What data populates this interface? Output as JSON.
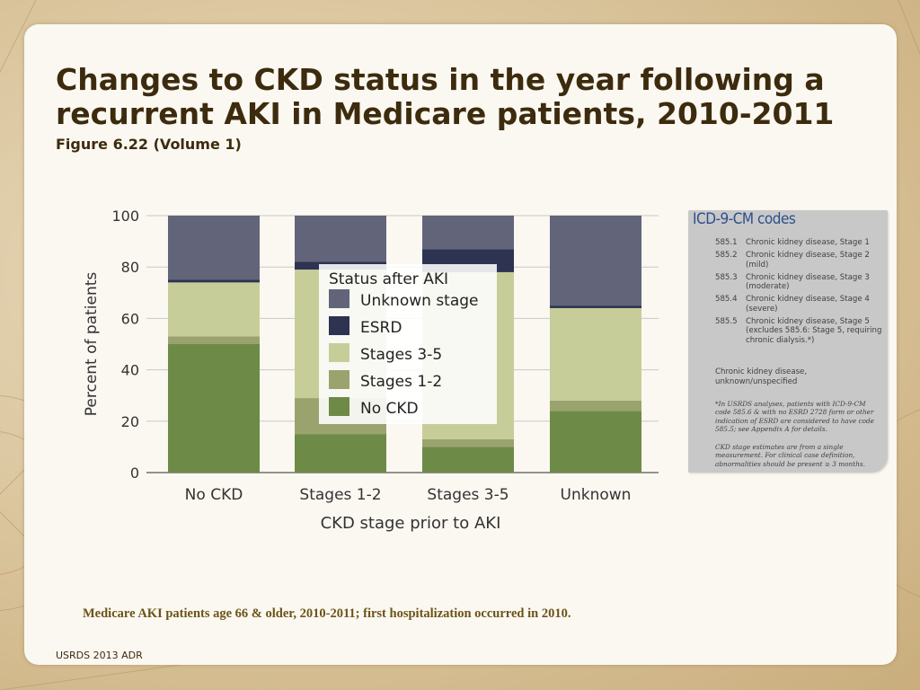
{
  "header": {
    "title": "Changes to CKD status in the year following a recurrent AKI in Medicare patients, 2010-2011",
    "subtitle": "Figure 6.22 (Volume 1)"
  },
  "chart_data": {
    "type": "bar",
    "stacked": true,
    "categories": [
      "No CKD",
      "Stages 1-2",
      "Stages 3-5",
      "Unknown"
    ],
    "series": [
      {
        "name": "No CKD",
        "color": "#6e8a47",
        "values": [
          50,
          15,
          10,
          24
        ]
      },
      {
        "name": "Stages 1-2",
        "color": "#9aa36d",
        "values": [
          3,
          14,
          3,
          4
        ]
      },
      {
        "name": "Stages 3-5",
        "color": "#c7cd98",
        "values": [
          21,
          50,
          65,
          36
        ]
      },
      {
        "name": "ESRD",
        "color": "#2d3351",
        "values": [
          1,
          3,
          9,
          1
        ]
      },
      {
        "name": "Unknown stage",
        "color": "#62657a",
        "values": [
          25,
          18,
          13,
          35
        ]
      }
    ],
    "yticks": [
      0,
      20,
      40,
      60,
      80,
      100
    ],
    "ylim": [
      0,
      100
    ],
    "ylabel": "Percent of patients",
    "xlabel": "CKD stage prior to AKI",
    "legend_title": "Status after AKI",
    "legend_order": [
      "Unknown stage",
      "ESRD",
      "Stages 3-5",
      "Stages 1-2",
      "No CKD"
    ]
  },
  "icd_box": {
    "title": "ICD-9-CM codes",
    "rows": [
      {
        "code": "585.1",
        "desc": "Chronic kidney disease, Stage 1"
      },
      {
        "code": "585.2",
        "desc": "Chronic kidney disease, Stage 2 (mild)"
      },
      {
        "code": "585.3",
        "desc": "Chronic kidney disease, Stage 3 (moderate)"
      },
      {
        "code": "585.4",
        "desc": "Chronic kidney disease, Stage 4 (severe)"
      },
      {
        "code": "585.5",
        "desc": "Chronic kidney disease, Stage 5 (excludes 585.6: Stage 5, requiring chronic dialysis.*)"
      }
    ],
    "unknown": "Chronic kidney disease, unknown/unspecified",
    "footnote1": "*In USRDS analyses, patients with ICD-9-CM code 585.6 & with no ESRD 2728 form or other indication of ESRD are considered to have code 585.5; see Appendix A for details.",
    "footnote2": "CKD stage estimates are from a single measurement. For clinical case definition, abnormalities should be present ≥ 3 months."
  },
  "footer": {
    "note": "Medicare AKI patients age 66 & older, 2010-2011; first hospitalization occurred in 2010.",
    "source": "USRDS 2013 ADR"
  }
}
